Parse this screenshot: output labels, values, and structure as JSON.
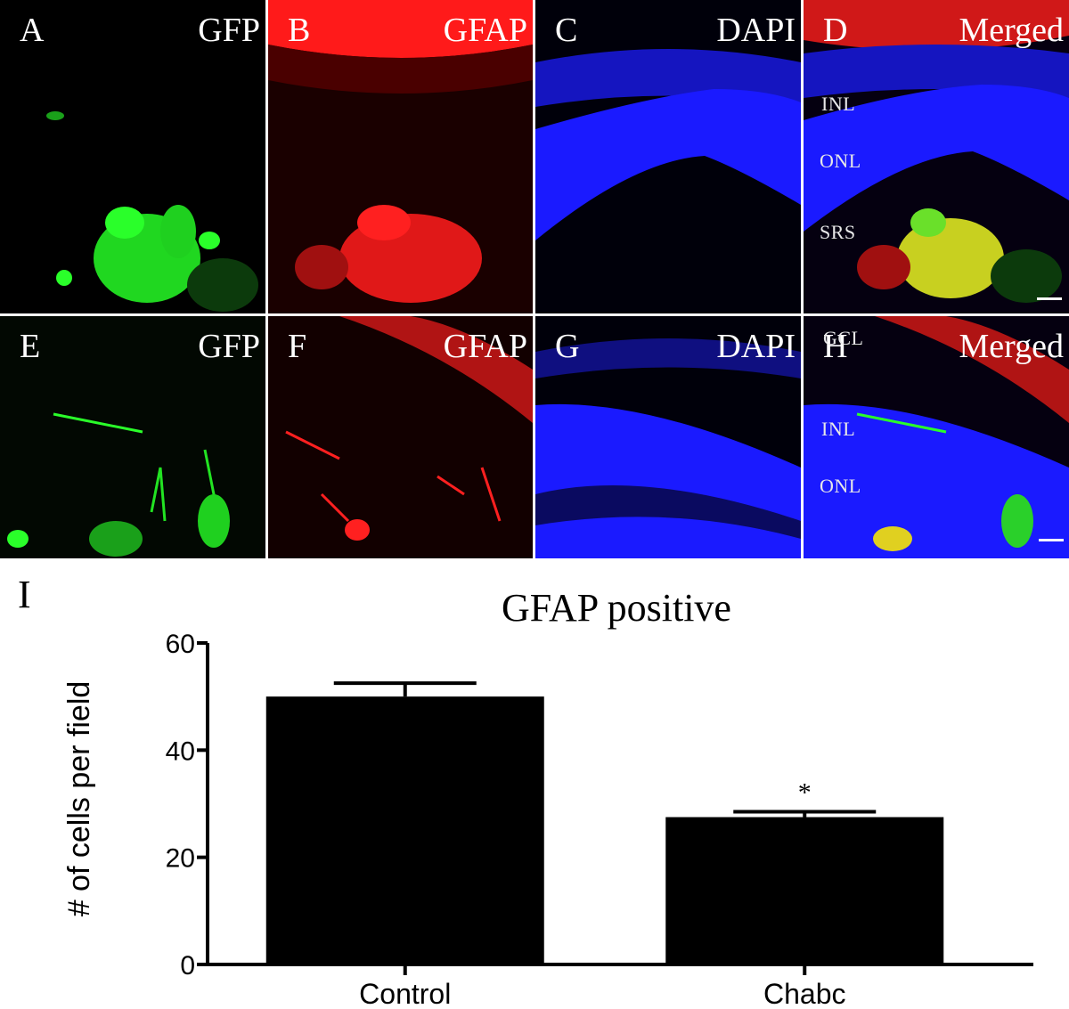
{
  "micrographs": {
    "rows": [
      [
        {
          "label": "A",
          "channel": "GFP",
          "color": "#22ff22",
          "layers": []
        },
        {
          "label": "B",
          "channel": "GFAP",
          "color": "#ff1a1a",
          "layers": []
        },
        {
          "label": "C",
          "channel": "DAPI",
          "color": "#1a1aff",
          "layers": []
        },
        {
          "label": "D",
          "channel": "Merged",
          "color": "#ffffff",
          "layers": [
            "INL",
            "ONL",
            "SRS"
          ]
        }
      ],
      [
        {
          "label": "E",
          "channel": "GFP",
          "color": "#22ff22",
          "layers": []
        },
        {
          "label": "F",
          "channel": "GFAP",
          "color": "#ff1a1a",
          "layers": []
        },
        {
          "label": "G",
          "channel": "DAPI",
          "color": "#1a1aff",
          "layers": []
        },
        {
          "label": "H",
          "channel": "Merged",
          "color": "#ffffff",
          "layers": [
            "GCL",
            "INL",
            "ONL"
          ]
        }
      ]
    ]
  },
  "chart_panel_label": "I",
  "chart_data": {
    "type": "bar",
    "title": "GFAP positive",
    "ylabel": "# of cells per field",
    "xlabel": "",
    "categories": [
      "Control",
      "Chabc"
    ],
    "values": [
      50,
      27.5
    ],
    "errors": [
      2.5,
      1
    ],
    "annotations": [
      "",
      "*"
    ],
    "ylim": [
      0,
      60
    ],
    "yticks": [
      0,
      20,
      40,
      60
    ],
    "bar_color": "#000000",
    "grid": false
  }
}
